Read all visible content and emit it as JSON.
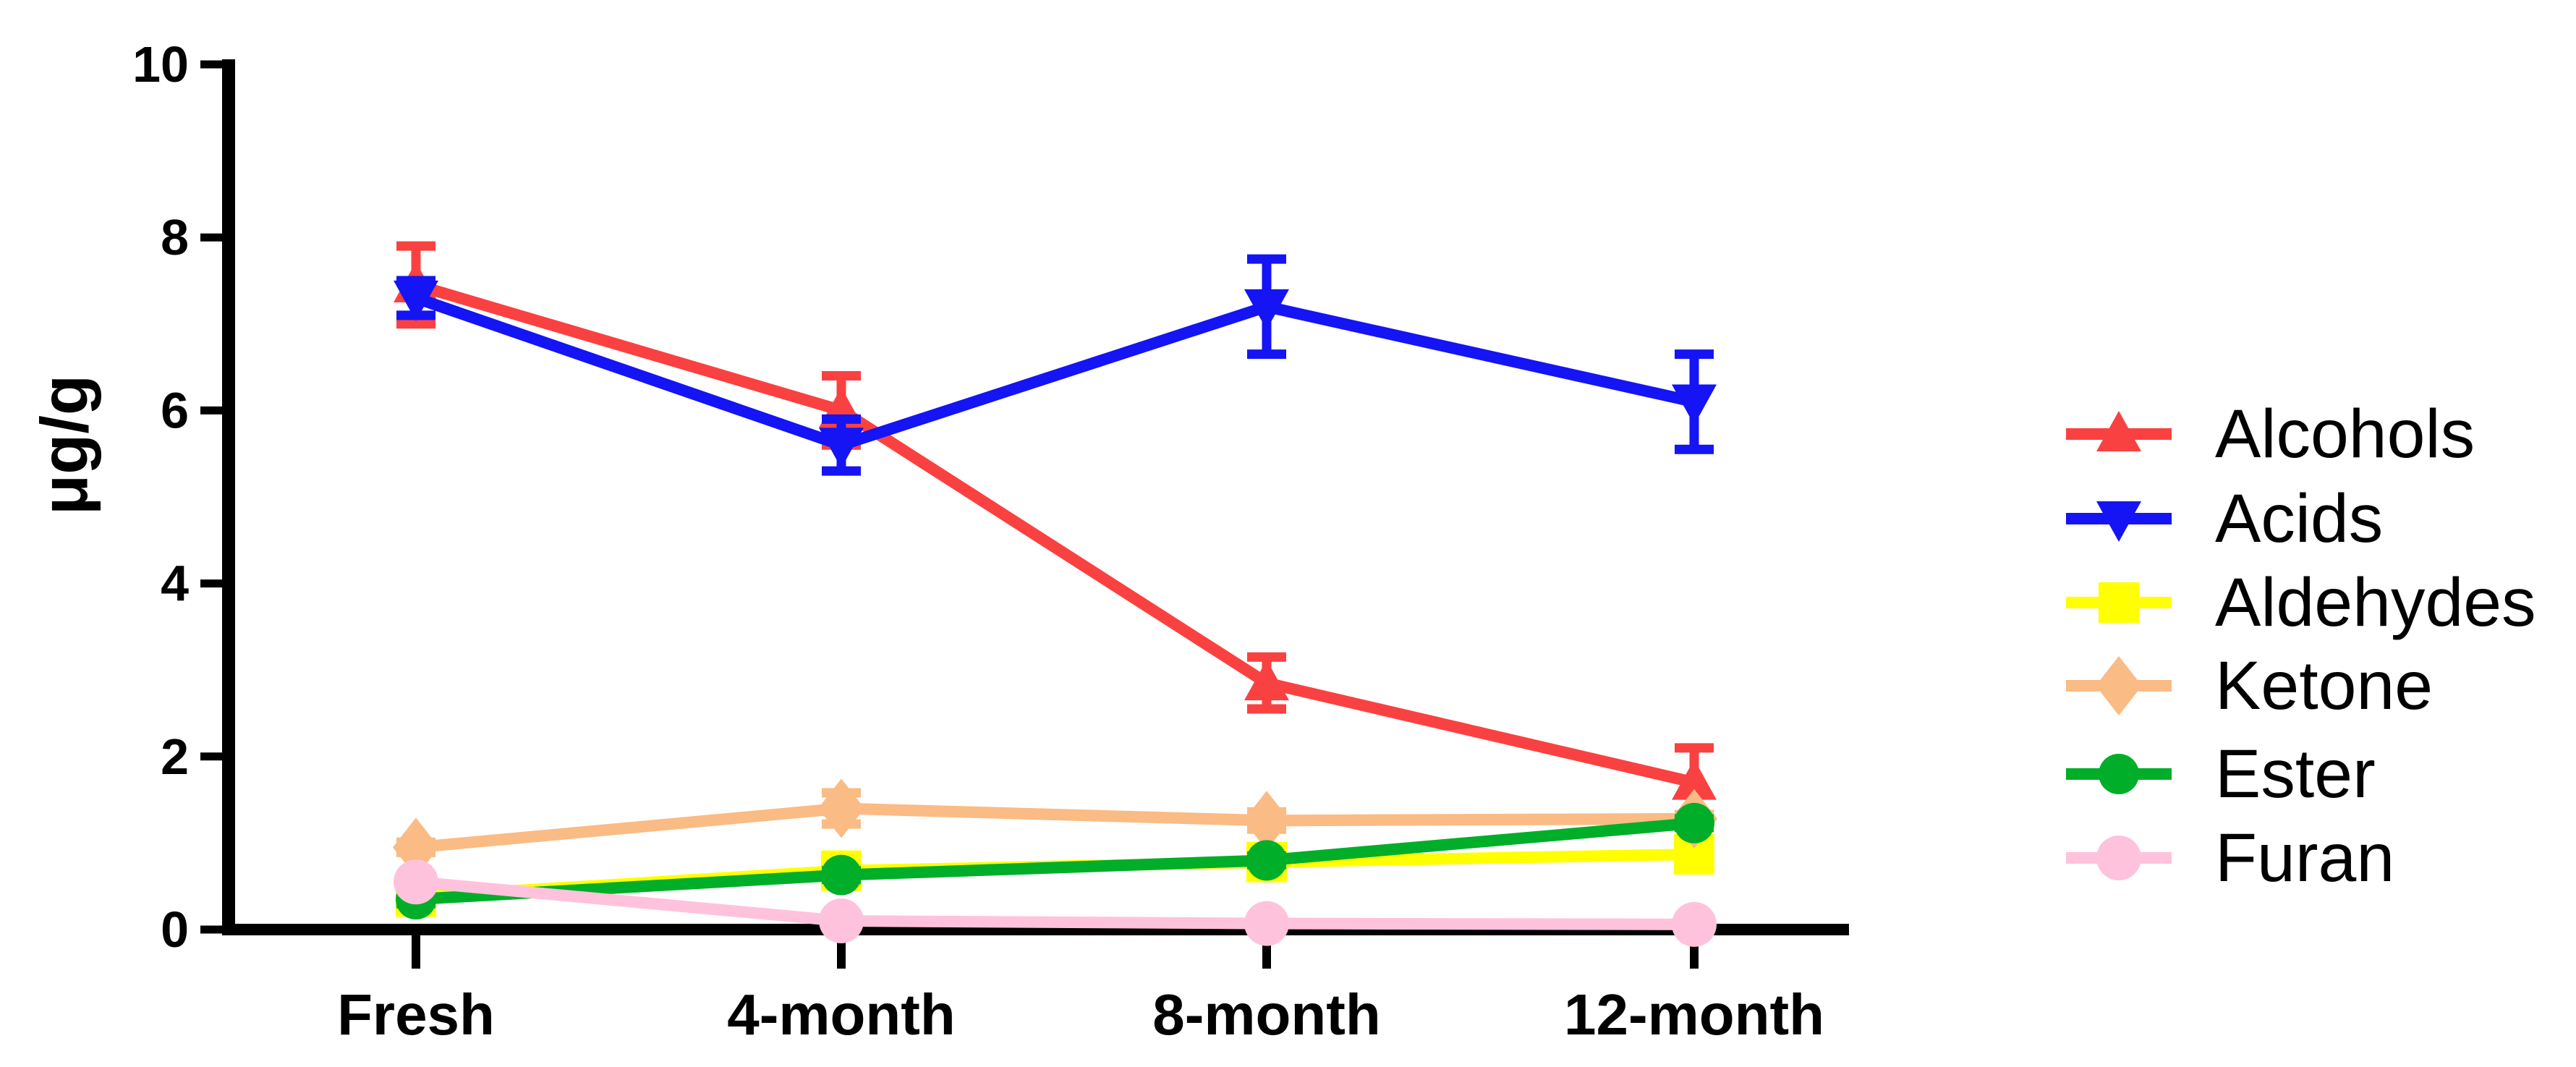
{
  "figure": {
    "background": "#FFFFFF",
    "axis_color": "#000000",
    "text_color": "#000000"
  },
  "chart_data": {
    "type": "line",
    "title": "",
    "xlabel": "",
    "ylabel": "μg/g",
    "categories": [
      "Fresh",
      "4-month",
      "8-month",
      "12-month"
    ],
    "ylim": [
      0,
      10
    ],
    "yticks": [
      0,
      2,
      4,
      6,
      8,
      10
    ],
    "grid": false,
    "legend_position": "right-outside",
    "error_bars": true,
    "series": [
      {
        "name": "Alcohols",
        "color": "#FA4141",
        "marker": "triangle-up",
        "values": [
          7.45,
          6.0,
          2.85,
          1.7
        ],
        "errors": [
          0.45,
          0.4,
          0.3,
          0.4
        ]
      },
      {
        "name": "Acids",
        "color": "#1414F5",
        "marker": "triangle-down",
        "values": [
          7.3,
          5.6,
          7.2,
          6.1
        ],
        "errors": [
          0.2,
          0.3,
          0.55,
          0.55
        ]
      },
      {
        "name": "Aldehydes",
        "color": "#FFFF00",
        "marker": "square",
        "values": [
          0.38,
          0.68,
          0.78,
          0.87
        ],
        "errors": [
          0.05,
          0.05,
          0.05,
          0.05
        ]
      },
      {
        "name": "Ketone",
        "color": "#FABB84",
        "marker": "diamond",
        "values": [
          0.95,
          1.4,
          1.26,
          1.28
        ],
        "errors": [
          0.06,
          0.18,
          0.1,
          0.05
        ]
      },
      {
        "name": "Ester",
        "color": "#00AE29",
        "marker": "circle",
        "values": [
          0.35,
          0.63,
          0.8,
          1.23
        ],
        "errors": [
          0.05,
          0.05,
          0.05,
          0.05
        ]
      },
      {
        "name": "Furan",
        "color": "#FFC2DC",
        "marker": "circle-large",
        "values": [
          0.55,
          0.1,
          0.07,
          0.06
        ],
        "errors": [
          0.05,
          0.05,
          0.03,
          0.03
        ]
      }
    ]
  }
}
